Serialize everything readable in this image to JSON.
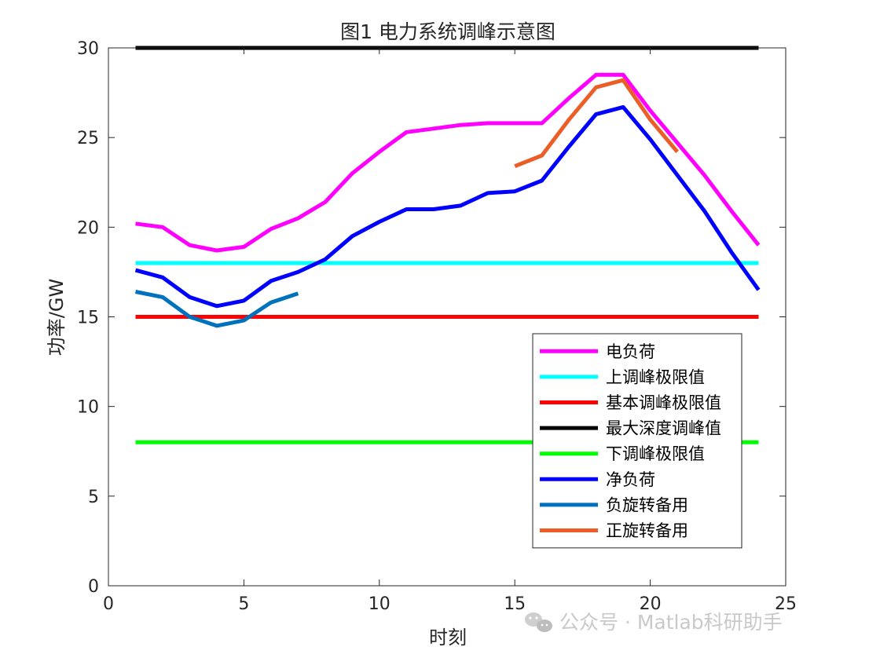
{
  "chart_data": {
    "type": "line",
    "title": "图1 电力系统调峰示意图",
    "xlabel": "时刻",
    "ylabel": "功率/GW",
    "xlim": [
      0,
      25
    ],
    "ylim": [
      0,
      30
    ],
    "xticks": [
      0,
      5,
      10,
      15,
      20,
      25
    ],
    "yticks": [
      0,
      5,
      10,
      15,
      20,
      25,
      30
    ],
    "grid": false,
    "legend_position": "bottom-right",
    "series": [
      {
        "name": "电负荷",
        "color": "#ff00ff",
        "x": [
          1,
          2,
          3,
          4,
          5,
          6,
          7,
          8,
          9,
          10,
          11,
          12,
          13,
          14,
          15,
          16,
          17,
          18,
          19,
          20,
          21,
          22,
          23,
          24
        ],
        "y": [
          20.2,
          20.0,
          19.0,
          18.7,
          18.9,
          19.9,
          20.5,
          21.4,
          23.0,
          24.2,
          25.3,
          25.5,
          25.7,
          25.8,
          25.8,
          25.8,
          27.2,
          28.5,
          28.5,
          26.5,
          24.7,
          22.9,
          20.9,
          19.0
        ]
      },
      {
        "name": "上调峰极限值",
        "color": "#00ffff",
        "x": [
          1,
          24
        ],
        "y": [
          18,
          18
        ]
      },
      {
        "name": "基本调峰极限值",
        "color": "#ff0000",
        "x": [
          1,
          24
        ],
        "y": [
          15,
          15
        ]
      },
      {
        "name": "最大深度调峰值",
        "color": "#000000",
        "x": [
          1,
          24
        ],
        "y": [
          30,
          30
        ]
      },
      {
        "name": "下调峰极限值",
        "color": "#00ff00",
        "x": [
          1,
          24
        ],
        "y": [
          8,
          8
        ]
      },
      {
        "name": "净负荷",
        "color": "#0000ff",
        "x": [
          1,
          2,
          3,
          4,
          5,
          6,
          7,
          8,
          9,
          10,
          11,
          12,
          13,
          14,
          15,
          16,
          17,
          18,
          19,
          20,
          21,
          22,
          23,
          24
        ],
        "y": [
          17.6,
          17.2,
          16.1,
          15.6,
          15.9,
          17.0,
          17.5,
          18.2,
          19.5,
          20.3,
          21.0,
          21.0,
          21.2,
          21.9,
          22.0,
          22.6,
          24.5,
          26.3,
          26.7,
          24.9,
          22.9,
          20.9,
          18.6,
          16.5
        ]
      },
      {
        "name": "负旋转备用",
        "color": "#0072bd",
        "x": [
          1,
          2,
          3,
          4,
          5,
          6,
          7
        ],
        "y": [
          16.4,
          16.1,
          15.0,
          14.5,
          14.8,
          15.8,
          16.3
        ]
      },
      {
        "name": "正旋转备用",
        "color": "#ec5e27",
        "x": [
          15,
          16,
          17,
          18,
          19,
          20,
          21
        ],
        "y": [
          23.4,
          24.0,
          26.0,
          27.8,
          28.2,
          26.0,
          24.2
        ]
      }
    ]
  },
  "watermark": {
    "icon": "wechat-icon",
    "text": "公众号 · Matlab科研助手"
  }
}
